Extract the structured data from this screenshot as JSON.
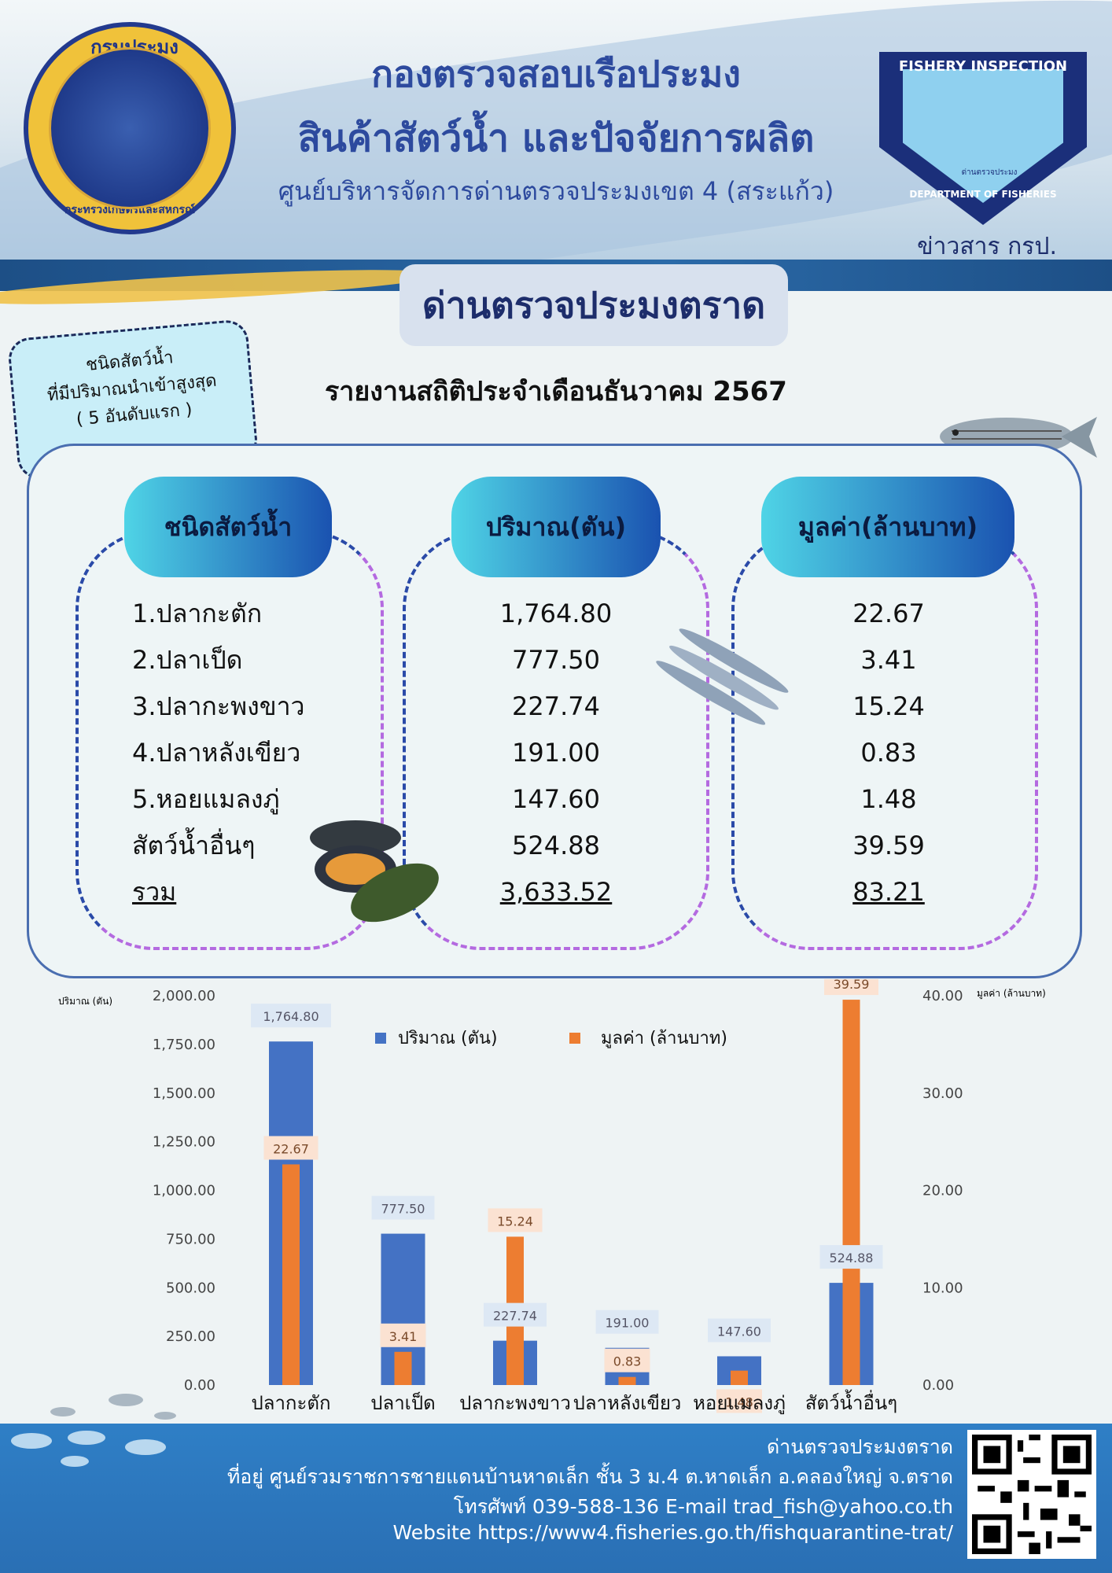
{
  "header": {
    "line1": "กองตรวจสอบเรือประมง",
    "line2": "สินค้าสัตว์น้ำ และปัจจัยการผลิต",
    "line3": "ศูนย์บริหารจัดการด่านตรวจประมงเขต 4 (สระแก้ว)",
    "news": "ข่าวสาร กรป.",
    "logo_left_top": "กรมประมง",
    "logo_left_bottom": "กระทรวงเกษตรและสหกรณ์",
    "logo_right_top": "FISHERY INSPECTION",
    "logo_right_bottom": "DEPARTMENT OF FISHERIES",
    "logo_right_inner": "ด่านตรวจประมง"
  },
  "sign": "ด่านตรวจประมงตราด",
  "note": {
    "line1": "ชนิดสัตว์น้ำ",
    "line2": "ที่มีปริมาณนำเข้าสูงสุด",
    "line3": "( 5 อันดับแรก )"
  },
  "report_title": "รายงานสถิติประจำเดือนธันวาคม 2567",
  "table": {
    "headers": [
      "ชนิดสัตว์น้ำ",
      "ปริมาณ(ตัน)",
      "มูลค่า(ล้านบาท)"
    ],
    "names": [
      "1.ปลากะตัก",
      "2.ปลาเป็ด",
      "3.ปลากะพงขาว",
      "4.ปลาหลังเขียว",
      "5.หอยแมลงภู่",
      "สัตว์น้ำอื่นๆ",
      "รวม"
    ],
    "quantity": [
      "1,764.80",
      "777.50",
      "227.74",
      "191.00",
      "147.60",
      "524.88",
      "3,633.52"
    ],
    "value": [
      "22.67",
      "3.41",
      "15.24",
      "0.83",
      "1.48",
      "39.59",
      "83.21"
    ]
  },
  "chart_data": {
    "type": "bar",
    "categories": [
      "ปลากะตัก",
      "ปลาเป็ด",
      "ปลากะพงขาว",
      "ปลาหลังเขียว",
      "หอยแมลงภู่",
      "สัตว์น้ำอื่นๆ"
    ],
    "series": [
      {
        "name": "ปริมาณ (ตัน)",
        "axis": "left",
        "color": "#4472c4",
        "values": [
          1764.8,
          777.5,
          227.74,
          191.0,
          147.6,
          524.88
        ],
        "labels": [
          "1,764.80",
          "777.50",
          "227.74",
          "191.00",
          "147.60",
          "524.88"
        ]
      },
      {
        "name": "มูลค่า (ล้านบาท)",
        "axis": "right",
        "color": "#ed7d31",
        "values": [
          22.67,
          3.41,
          15.24,
          0.83,
          1.48,
          39.59
        ],
        "labels": [
          "22.67",
          "3.41",
          "15.24",
          "0.83",
          "1.48",
          "39.59"
        ]
      }
    ],
    "ylabel": "ปริมาณ (ตัน)",
    "y2label": "มูลค่า (ล้านบาท)",
    "ylim": [
      0,
      2000
    ],
    "y2lim": [
      0,
      40
    ],
    "yticks": [
      "0.00",
      "250.00",
      "500.00",
      "750.00",
      "1,000.00",
      "1,250.00",
      "1,500.00",
      "1,750.00",
      "2,000.00"
    ],
    "y2ticks": [
      "0.00",
      "10.00",
      "20.00",
      "30.00",
      "40.00"
    ],
    "legend": "top-center",
    "grid": false
  },
  "footer": {
    "line1": "ด่านตรวจประมงตราด",
    "line2": "ที่อยู่ ศูนย์รวมราชการชายแดนบ้านหาดเล็ก ชั้น 3 ม.4 ต.หาดเล็ก อ.คลองใหญ่ จ.ตราด",
    "line3": "โทรศัพท์ 039-588-136  E-mail trad_fish@yahoo.co.th",
    "line4": "Website https://www4.fisheries.go.th/fishquarantine-trat/"
  },
  "colors": {
    "title": "#2d4a9e",
    "bar_quantity": "#4472c4",
    "bar_value": "#ed7d31",
    "footer": "#2f7fc6"
  }
}
